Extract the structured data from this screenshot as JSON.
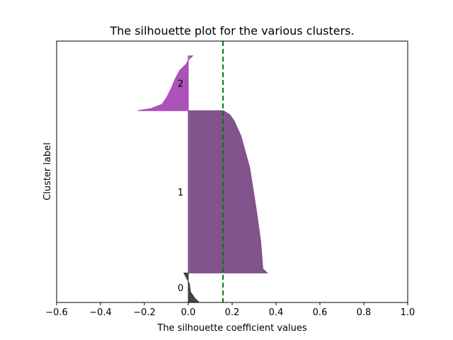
{
  "chart_data": {
    "type": "area",
    "title": "The silhouette plot for the various clusters.",
    "xlabel": "The silhouette coefficient values",
    "ylabel": "Cluster label",
    "xlim": [
      -0.6,
      1.0
    ],
    "x_ticks": [
      "−0.6",
      "−0.4",
      "−0.2",
      "0.0",
      "0.2",
      "0.4",
      "0.6",
      "0.8",
      "1.0"
    ],
    "x_tick_values": [
      -0.6,
      -0.4,
      -0.2,
      0.0,
      0.2,
      0.4,
      0.6,
      0.8,
      1.0
    ],
    "y_ticks": [],
    "grid": false,
    "mean_silhouette_line": {
      "x": 0.158,
      "color": "#008000",
      "style": "dashed"
    },
    "clusters": [
      {
        "label": "0",
        "color": "#3a3a3a",
        "sample_range": [
          0,
          14
        ],
        "profile": [
          [
            0,
            0.05
          ],
          [
            2,
            0.03
          ],
          [
            5,
            0.01
          ],
          [
            9,
            0.005
          ],
          [
            12,
            -0.01
          ],
          [
            14,
            -0.02
          ]
        ]
      },
      {
        "label": "1",
        "color": "#7b4b87",
        "sample_range": [
          14,
          91
        ],
        "profile": [
          [
            0,
            0.36
          ],
          [
            2,
            0.34
          ],
          [
            15,
            0.33
          ],
          [
            30,
            0.31
          ],
          [
            50,
            0.28
          ],
          [
            65,
            0.24
          ],
          [
            72,
            0.21
          ],
          [
            75,
            0.19
          ],
          [
            77,
            0.16
          ]
        ]
      },
      {
        "label": "2",
        "color": "#a64ab4",
        "sample_range": [
          91,
          117
        ],
        "profile": [
          [
            0,
            -0.23
          ],
          [
            1,
            -0.17
          ],
          [
            3,
            -0.12
          ],
          [
            6,
            -0.1
          ],
          [
            10,
            -0.08
          ],
          [
            15,
            -0.06
          ],
          [
            19,
            -0.04
          ],
          [
            22,
            -0.01
          ],
          [
            24,
            0.0
          ],
          [
            26,
            0.02
          ]
        ]
      }
    ]
  }
}
